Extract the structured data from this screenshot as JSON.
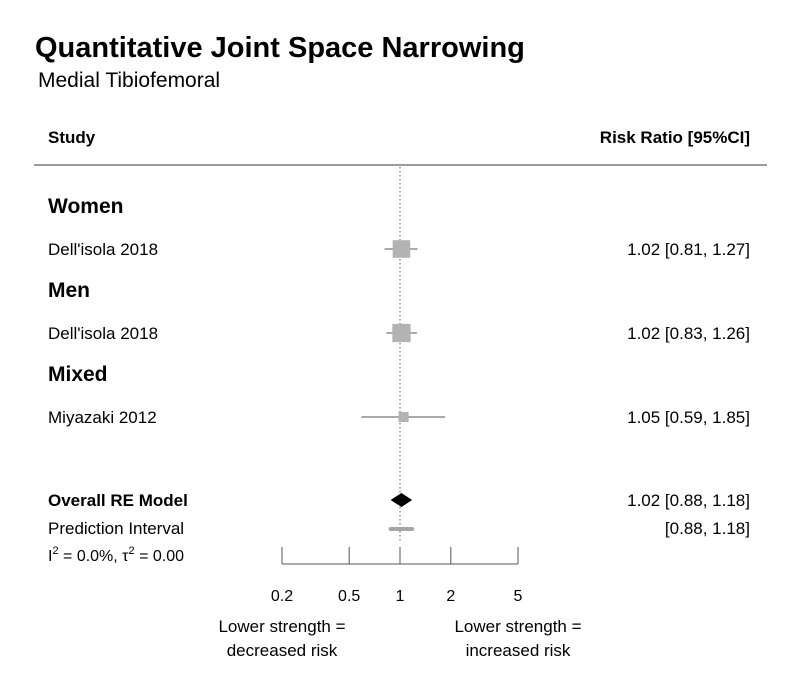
{
  "chart_data": {
    "type": "forest",
    "title": "Quantitative Joint Space Narrowing",
    "subtitle": "Medial Tibiofemoral",
    "headers": {
      "study": "Study",
      "estimate": "Risk Ratio [95%CI]"
    },
    "x_scale": "log",
    "xlim": [
      0.2,
      5
    ],
    "x_ticks": [
      0.2,
      0.5,
      1,
      2,
      5
    ],
    "x_tick_labels": [
      "0.2",
      "0.5",
      "1",
      "2",
      "5"
    ],
    "reference_line": 1,
    "groups": [
      {
        "label": "Women",
        "studies": [
          {
            "label": "Dell'isola 2018",
            "estimate": 1.02,
            "lower": 0.81,
            "upper": 1.27,
            "ci_text": "1.02 [0.81, 1.27]",
            "weight": 0.53
          }
        ]
      },
      {
        "label": "Men",
        "studies": [
          {
            "label": "Dell'isola 2018",
            "estimate": 1.02,
            "lower": 0.83,
            "upper": 1.26,
            "ci_text": "1.02 [0.83, 1.26]",
            "weight": 0.57
          }
        ]
      },
      {
        "label": "Mixed",
        "studies": [
          {
            "label": "Miyazaki 2012",
            "estimate": 1.05,
            "lower": 0.59,
            "upper": 1.85,
            "ci_text": "1.05 [0.59, 1.85]",
            "weight": 0.12
          }
        ]
      }
    ],
    "overall": {
      "label": "Overall RE Model",
      "estimate": 1.02,
      "lower": 0.88,
      "upper": 1.18,
      "ci_text": "1.02 [0.88, 1.18]"
    },
    "prediction_interval": {
      "label": "Prediction Interval",
      "lower": 0.88,
      "upper": 1.18,
      "ci_text": "[0.88, 1.18]"
    },
    "heterogeneity": {
      "i2_symbol": "I",
      "i2_value": " = 0.0%, ",
      "tau2_symbol": "τ",
      "tau2_value": " = 0.00",
      "superscript": "2"
    },
    "axis_notes": {
      "left": [
        "Lower strength =",
        "decreased risk"
      ],
      "right": [
        "Lower strength =",
        "increased risk"
      ]
    }
  },
  "colors": {
    "study_marker": "#b3b3b3",
    "overall_marker": "#000000",
    "axis": "#555555",
    "rule": "#7a7a7a"
  }
}
